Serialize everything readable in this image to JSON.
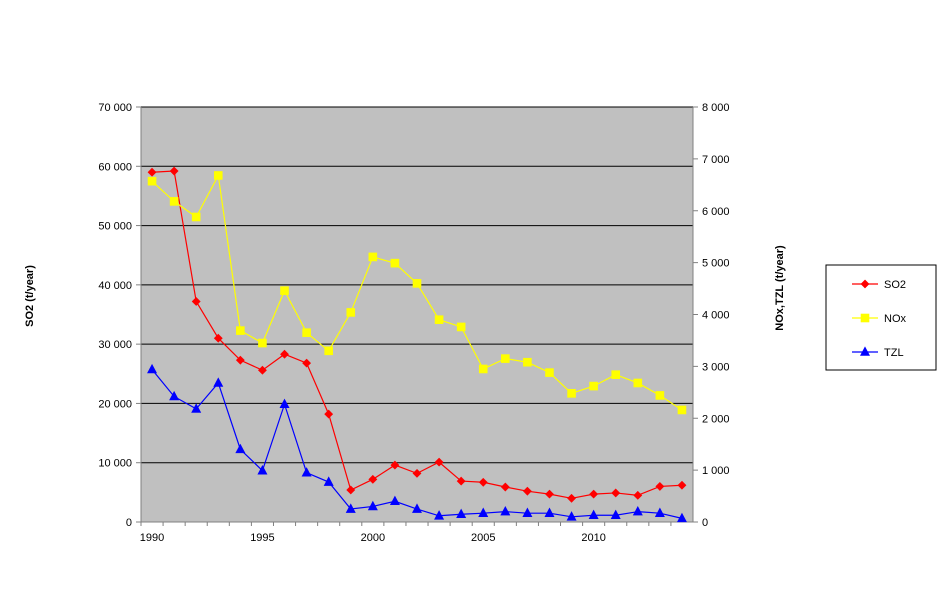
{
  "chart_data": {
    "type": "line",
    "title": "",
    "xlabel": "",
    "ylabel_left": "SO2 (t/year)",
    "ylabel_right": "NOx,TZL (t/year)",
    "x": [
      1990,
      1991,
      1992,
      1993,
      1994,
      1995,
      1996,
      1997,
      1998,
      1999,
      2000,
      2001,
      2002,
      2003,
      2004,
      2005,
      2006,
      2007,
      2008,
      2009,
      2010,
      2011,
      2012,
      2013,
      2014
    ],
    "xlim": [
      1989.5,
      2014.5
    ],
    "x_ticks": [
      1990,
      1995,
      2000,
      2005,
      2010
    ],
    "x_tick_labels": [
      "1990",
      "1995",
      "2000",
      "2005",
      "2010"
    ],
    "ylim_left": [
      0,
      70000
    ],
    "y_ticks_left": [
      0,
      10000,
      20000,
      30000,
      40000,
      50000,
      60000,
      70000
    ],
    "y_tick_labels_left": [
      "0",
      "10 000",
      "20 000",
      "30 000",
      "40 000",
      "50 000",
      "60 000",
      "70 000"
    ],
    "ylim_right": [
      0,
      8000
    ],
    "y_ticks_right": [
      0,
      1000,
      2000,
      3000,
      4000,
      5000,
      6000,
      7000,
      8000
    ],
    "y_tick_labels_right": [
      "0",
      "1 000",
      "2 000",
      "3 000",
      "4 000",
      "5 000",
      "6 000",
      "7 000",
      "8 000"
    ],
    "grid": "horizontal",
    "plot_background": "#c0c0c0",
    "legend_position": "right",
    "series": [
      {
        "name": "SO2",
        "axis": "left",
        "color": "#ff0000",
        "marker": "diamond",
        "values": [
          59000,
          59200,
          37200,
          31000,
          27300,
          25600,
          28300,
          26800,
          18200,
          5400,
          7200,
          9600,
          8200,
          10100,
          6900,
          6700,
          5900,
          5200,
          4700,
          4000,
          4700,
          4900,
          4500,
          6000,
          6200
        ]
      },
      {
        "name": "NOx",
        "axis": "right",
        "color": "#ffff00",
        "marker": "square",
        "values": [
          6570,
          6180,
          5880,
          6680,
          3690,
          3450,
          4460,
          3650,
          3300,
          4040,
          5110,
          4990,
          4600,
          3900,
          3760,
          2950,
          3150,
          3080,
          2880,
          2480,
          2620,
          2840,
          2680,
          2440,
          2160
        ]
      },
      {
        "name": "TZL",
        "axis": "right",
        "color": "#0000ff",
        "marker": "triangle",
        "values": [
          2940,
          2420,
          2180,
          2680,
          1400,
          990,
          2270,
          950,
          770,
          250,
          300,
          400,
          250,
          120,
          150,
          170,
          200,
          170,
          170,
          100,
          130,
          130,
          200,
          170,
          70
        ]
      }
    ]
  }
}
